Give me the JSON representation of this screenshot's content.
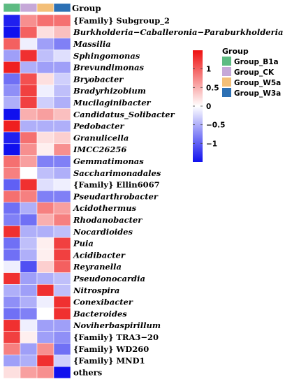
{
  "chart_data": {
    "type": "heatmap",
    "annotation_title": "Group",
    "columns": [
      "Group_B1a",
      "Group_CK",
      "Group_W5a",
      "Group_W3a"
    ],
    "column_colors": [
      "#5dbb82",
      "#c6a8d8",
      "#f3bf78",
      "#2c70b4"
    ],
    "rows": [
      {
        "label": "{Family} Subgroup_2",
        "italic": false
      },
      {
        "label": "Burkholderia−Caballeronia−Paraburkholderia",
        "italic": true
      },
      {
        "label": "Massilia",
        "italic": true
      },
      {
        "label": "Sphingomonas",
        "italic": true
      },
      {
        "label": "Brevundimonas",
        "italic": true
      },
      {
        "label": "Bryobacter",
        "italic": true
      },
      {
        "label": "Bradyrhizobium",
        "italic": true
      },
      {
        "label": "Mucilaginibacter",
        "italic": true
      },
      {
        "label": "Candidatus_Solibacter",
        "italic": true
      },
      {
        "label": "Pedobacter",
        "italic": true
      },
      {
        "label": "Granulicella",
        "italic": true
      },
      {
        "label": "IMCC26256",
        "italic": true
      },
      {
        "label": "Gemmatimonas",
        "italic": true
      },
      {
        "label": "Saccharimonadales",
        "italic": true
      },
      {
        "label": "{Family} Ellin6067",
        "italic": false
      },
      {
        "label": "Pseudarthrobacter",
        "italic": true
      },
      {
        "label": "Acidothermus",
        "italic": true
      },
      {
        "label": "Rhodanobacter",
        "italic": true
      },
      {
        "label": "Nocardioides",
        "italic": true
      },
      {
        "label": "Puia",
        "italic": true
      },
      {
        "label": "Acidibacter",
        "italic": true
      },
      {
        "label": "Reyranella",
        "italic": true
      },
      {
        "label": "Pseudonocardia",
        "italic": true
      },
      {
        "label": "Nitrospira",
        "italic": true
      },
      {
        "label": "Conexibacter",
        "italic": true
      },
      {
        "label": "Bacteroides",
        "italic": true
      },
      {
        "label": "Noviherbaspirillum",
        "italic": true
      },
      {
        "label": "{Family} TRA3−20",
        "italic": false
      },
      {
        "label": "{Family} WD260",
        "italic": false
      },
      {
        "label": "{Family} MND1",
        "italic": false
      },
      {
        "label": "others",
        "italic": false
      }
    ],
    "values": [
      [
        -1.4,
        0.7,
        0.9,
        0.9
      ],
      [
        -1.5,
        1.0,
        0.2,
        0.4
      ],
      [
        1.0,
        -0.1,
        -0.6,
        -0.8
      ],
      [
        -0.6,
        1.3,
        -0.4,
        -0.2
      ],
      [
        1.4,
        -0.5,
        -0.6,
        -0.6
      ],
      [
        -0.9,
        1.1,
        0.2,
        -0.3
      ],
      [
        -0.7,
        1.2,
        -0.1,
        -0.4
      ],
      [
        -0.5,
        1.2,
        -0.3,
        -0.5
      ],
      [
        -1.5,
        0.5,
        0.6,
        0.4
      ],
      [
        1.4,
        -0.5,
        -0.5,
        -0.5
      ],
      [
        -1.4,
        0.9,
        0.2,
        0.3
      ],
      [
        -1.5,
        0.7,
        0.1,
        0.7
      ],
      [
        0.9,
        0.6,
        -0.8,
        -0.8
      ],
      [
        0.8,
        0.0,
        -0.4,
        -0.5
      ],
      [
        -1.0,
        1.3,
        -0.2,
        -0.1
      ],
      [
        0.9,
        0.8,
        -0.8,
        -0.8
      ],
      [
        -0.9,
        -0.5,
        0.8,
        0.6
      ],
      [
        -0.8,
        -0.9,
        0.5,
        0.8
      ],
      [
        1.3,
        -0.5,
        -0.5,
        -0.4
      ],
      [
        -0.9,
        -0.4,
        0.1,
        1.2
      ],
      [
        -0.9,
        -0.5,
        0.1,
        1.2
      ],
      [
        -0.1,
        -1.1,
        0.3,
        1.0
      ],
      [
        1.3,
        -0.6,
        -0.5,
        -0.4
      ],
      [
        -0.5,
        -0.6,
        1.3,
        -0.4
      ],
      [
        -0.7,
        -0.5,
        -0.1,
        1.3
      ],
      [
        -0.9,
        -0.8,
        0.0,
        1.3
      ],
      [
        1.3,
        -0.1,
        -0.6,
        -0.6
      ],
      [
        1.2,
        0.1,
        -0.6,
        -0.7
      ],
      [
        0.8,
        -0.6,
        0.7,
        -0.9
      ],
      [
        -0.6,
        -0.5,
        1.3,
        -0.3
      ],
      [
        0.2,
        0.6,
        0.7,
        -1.5
      ]
    ],
    "color_scale": {
      "min": -1.5,
      "max": 1.5,
      "colors": [
        "#1010ee",
        "#ffffff",
        "#ee1010"
      ],
      "ticks": [
        1,
        0.5,
        0,
        -0.5,
        -1
      ],
      "tick_labels": [
        "1",
        "0.5",
        "0",
        "−0.5",
        "−1"
      ]
    },
    "legend": {
      "title": "Group",
      "entries": [
        "Group_B1a",
        "Group_CK",
        "Group_W5a",
        "Group_W3a"
      ]
    }
  }
}
